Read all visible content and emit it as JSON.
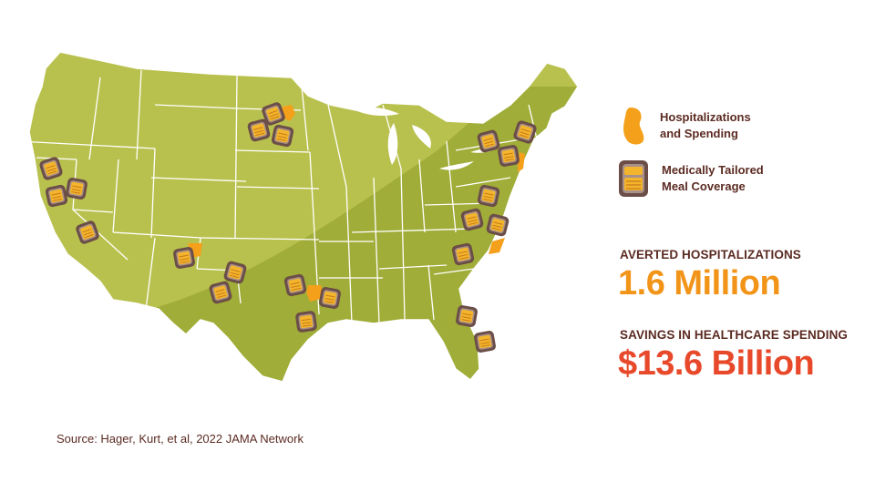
{
  "colors": {
    "map_light": "#b9c14e",
    "map_dark": "#a0ad38",
    "state_border": "#ffffff",
    "hospitalization_marker": "#f5a01a",
    "meal_icon_frame": "#6b4e47",
    "meal_icon_food": "#f3b52b",
    "text_brown": "#5b2b22",
    "value_orange": "#f29418",
    "value_red": "#e8492a"
  },
  "legend": {
    "hospitalizations_line1": "Hospitalizations",
    "hospitalizations_line2": "and Spending",
    "hospitalizations_icon": "orange-bean-shape-icon",
    "meals_line1": "Medically Tailored",
    "meals_line2": "Meal Coverage",
    "meals_icon": "meal-tray-icon"
  },
  "stats": {
    "averted_label": "AVERTED HOSPITALIZATIONS",
    "averted_value": "1.6 Million",
    "savings_label": "SAVINGS IN HEALTHCARE SPENDING",
    "savings_value": "$13.6 Billion"
  },
  "source": "Source: Hager, Kurt, et al, 2022 JAMA Network",
  "map": {
    "meal_icon_count": 24,
    "highlighted_states": [
      "Minnesota",
      "New Jersey",
      "New Mexico",
      "North Carolina",
      "Louisiana"
    ]
  }
}
